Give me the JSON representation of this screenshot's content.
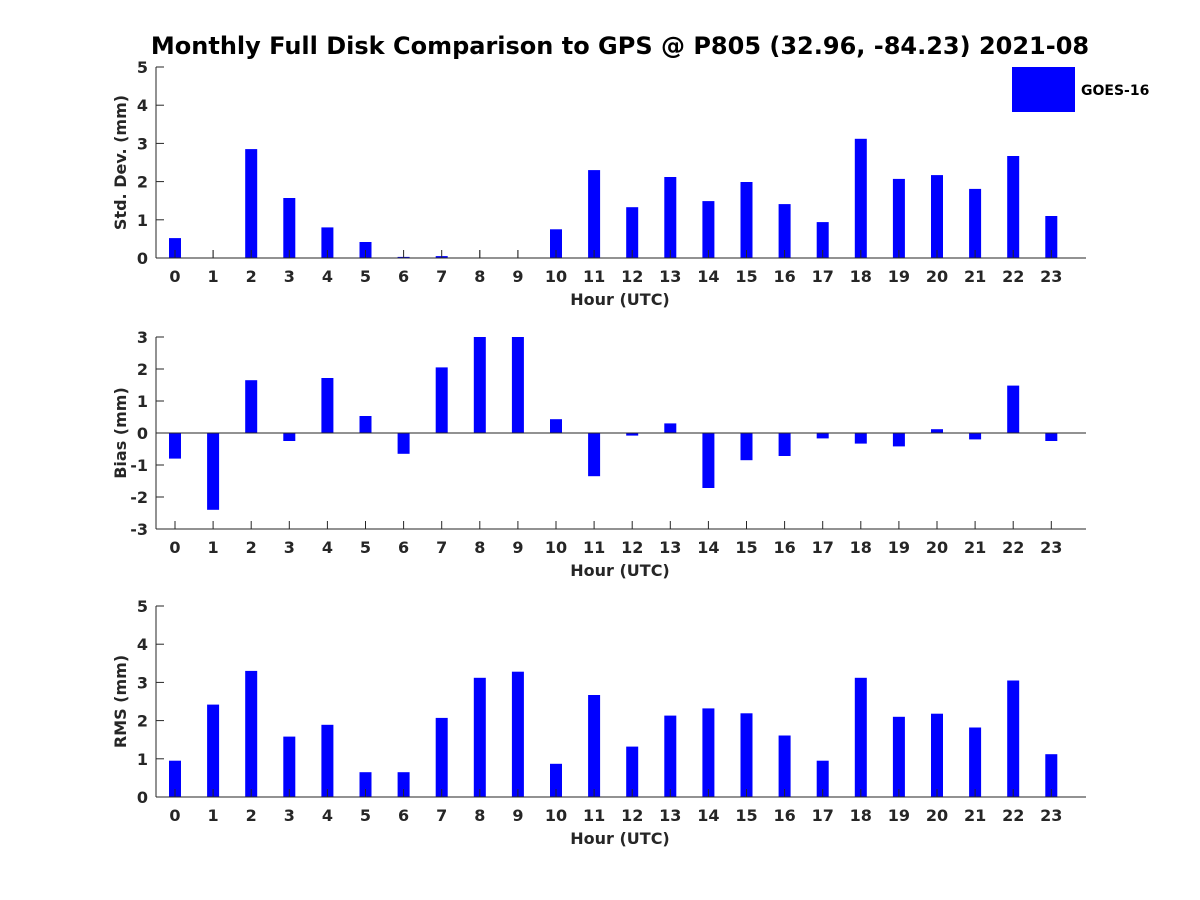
{
  "colors": {
    "bar": "#0000ff",
    "axis": "#262626",
    "title": "#000000"
  },
  "chart_data": {
    "type": "bar",
    "title": "Monthly Full Disk Comparison to GPS @ P805 (32.96, -84.23) 2021-08",
    "legend": {
      "entries": [
        "GOES-16"
      ],
      "placement": "top-right"
    },
    "categories": [
      "0",
      "1",
      "2",
      "3",
      "4",
      "5",
      "6",
      "7",
      "8",
      "9",
      "10",
      "11",
      "12",
      "13",
      "14",
      "15",
      "16",
      "17",
      "18",
      "19",
      "20",
      "21",
      "22",
      "23"
    ],
    "panels": [
      {
        "name": "std-dev",
        "ylabel": "Std. Dev. (mm)",
        "xlabel": "Hour (UTC)",
        "ylim": [
          0,
          5
        ],
        "yticks": [
          0,
          1,
          2,
          3,
          4,
          5
        ],
        "series": [
          {
            "name": "GOES-16",
            "values": [
              0.52,
              0,
              2.85,
              1.57,
              0.8,
              0.42,
              0.03,
              0.05,
              0,
              0,
              0.75,
              2.3,
              1.33,
              2.12,
              1.49,
              1.99,
              1.41,
              0.94,
              3.12,
              2.07,
              2.17,
              1.81,
              2.67,
              1.1
            ]
          }
        ]
      },
      {
        "name": "bias",
        "ylabel": "Bias (mm)",
        "xlabel": "Hour (UTC)",
        "ylim": [
          -3,
          3
        ],
        "yticks": [
          -3,
          -2,
          -1,
          0,
          1,
          2,
          3
        ],
        "series": [
          {
            "name": "GOES-16",
            "values": [
              -0.8,
              -2.4,
              1.65,
              -0.25,
              1.72,
              0.53,
              -0.65,
              2.05,
              3.0,
              3.0,
              0.43,
              -1.35,
              -0.08,
              0.3,
              -1.72,
              -0.85,
              -0.72,
              -0.17,
              -0.33,
              -0.42,
              0.12,
              -0.2,
              1.48,
              -0.25
            ]
          }
        ]
      },
      {
        "name": "rms",
        "ylabel": "RMS (mm)",
        "xlabel": "Hour (UTC)",
        "ylim": [
          0,
          5
        ],
        "yticks": [
          0,
          1,
          2,
          3,
          4,
          5
        ],
        "series": [
          {
            "name": "GOES-16",
            "values": [
              0.95,
              2.42,
              3.3,
              1.58,
              1.89,
              0.65,
              0.65,
              2.07,
              3.12,
              3.28,
              0.87,
              2.67,
              1.32,
              2.13,
              2.32,
              2.19,
              1.61,
              0.95,
              3.12,
              2.1,
              2.18,
              1.82,
              3.05,
              1.12
            ]
          }
        ]
      }
    ]
  }
}
